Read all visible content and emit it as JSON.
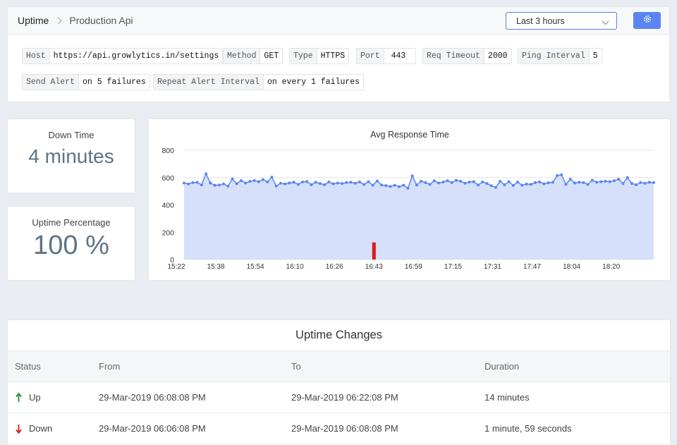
{
  "breadcrumb": {
    "root": "Uptime",
    "current": "Production Api"
  },
  "time_range": {
    "selected": "Last 3 hours"
  },
  "settings_button": {
    "icon": "gear-icon",
    "color": "#5b86f0"
  },
  "monitor_tags": [
    {
      "key": "Host",
      "value": "https://api.growlytics.in/settings"
    },
    {
      "key": "Method",
      "value": "GET"
    },
    {
      "key": "Type",
      "value": "HTTPS"
    },
    {
      "key": "Port",
      "value": "443"
    },
    {
      "key": "Req Timeout",
      "value": "2000"
    },
    {
      "key": "Ping Interval",
      "value": "5"
    },
    {
      "key": "Send Alert",
      "value": "on 5 failures"
    },
    {
      "key": "Repeat Alert Interval",
      "value": "on every 1 failures"
    }
  ],
  "stats": {
    "downtime": {
      "label": "Down Time",
      "value": "4 minutes"
    },
    "uptime": {
      "label": "Uptime Percentage",
      "value": "100 %"
    }
  },
  "uptime_changes": {
    "title": "Uptime Changes",
    "columns": [
      "Status",
      "From",
      "To",
      "Duration"
    ],
    "rows": [
      {
        "status": "Up",
        "status_color": "#1e8e2f",
        "from": "29-Mar-2019 06:08:08 PM",
        "to": "29-Mar-2019 06:22:08 PM",
        "duration": "14 minutes"
      },
      {
        "status": "Down",
        "status_color": "#e01818",
        "from": "29-Mar-2019 06:06:08 PM",
        "to": "29-Mar-2019 06:08:08 PM",
        "duration": "1 minute, 59 seconds"
      }
    ]
  },
  "chart_data": {
    "type": "area",
    "title": "Avg Response Time",
    "xlabel": "",
    "ylabel": "",
    "ylim": [
      0,
      800
    ],
    "yticks": [
      0,
      200,
      400,
      600,
      800
    ],
    "xticks": [
      "15:22",
      "15:38",
      "15:54",
      "16:10",
      "16:26",
      "16:43",
      "16:59",
      "17:15",
      "17:31",
      "17:47",
      "18:04",
      "18:20"
    ],
    "grid": true,
    "series": [
      {
        "color": "#5b86f0",
        "fill": "#d6e0fb",
        "values": [
          560,
          553,
          563,
          565,
          546,
          628,
          560,
          543,
          545,
          553,
          537,
          590,
          555,
          578,
          560,
          572,
          578,
          570,
          585,
          568,
          603,
          538,
          558,
          553,
          560,
          566,
          550,
          568,
          571,
          547,
          566,
          556,
          547,
          568,
          554,
          560,
          556,
          563,
          565,
          558,
          568,
          549,
          570,
          544,
          575,
          545,
          541,
          535,
          544,
          533,
          544,
          522,
          612,
          545,
          573,
          563,
          550,
          576,
          560,
          567,
          577,
          563,
          580,
          573,
          558,
          567,
          570,
          545,
          568,
          557,
          540,
          528,
          572,
          547,
          570,
          542,
          567,
          544,
          552,
          550,
          563,
          568,
          554,
          562,
          565,
          615,
          620,
          550,
          588,
          560,
          566,
          563,
          550,
          580,
          566,
          570,
          573,
          570,
          577,
          588,
          556,
          600,
          557,
          547,
          563,
          558,
          565,
          563
        ]
      }
    ],
    "downtime_markers": [
      {
        "at_label": "16:43",
        "min": 0,
        "max": 125,
        "color": "#e01818"
      }
    ]
  }
}
